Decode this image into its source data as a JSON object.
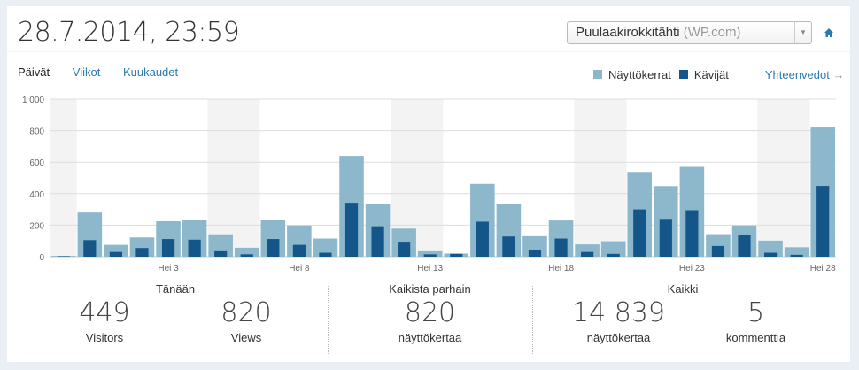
{
  "header": {
    "datetime": "28.7.2014, 23:59",
    "site_name": "Puulaakirokkitähti",
    "site_suffix": "(WP.com)"
  },
  "tabs": [
    {
      "label": "Päivät",
      "active": true
    },
    {
      "label": "Viikot"
    },
    {
      "label": "Kuukaudet"
    }
  ],
  "legend": {
    "views": "Näyttökerrat",
    "visitors": "Kävijät",
    "summaries_link": "Yhteenvedot",
    "arrow": "→"
  },
  "colors": {
    "views": "#8db8cc",
    "visitors": "#14558a",
    "link": "#2a7ab0",
    "weekend": "#f3f3f3"
  },
  "chart_data": {
    "type": "bar",
    "series": [
      {
        "name": "Näyttökerrat",
        "values": [
          5,
          280,
          75,
          122,
          225,
          232,
          142,
          57,
          232,
          198,
          115,
          640,
          335,
          178,
          40,
          20,
          462,
          335,
          130,
          230,
          78,
          98,
          538,
          448,
          570,
          143,
          198,
          102,
          60,
          820
        ]
      },
      {
        "name": "Kävijät",
        "values": [
          3,
          105,
          30,
          55,
          112,
          108,
          40,
          15,
          112,
          75,
          25,
          342,
          193,
          95,
          15,
          18,
          222,
          128,
          45,
          115,
          30,
          18,
          300,
          240,
          295,
          68,
          135,
          25,
          12,
          449
        ]
      }
    ],
    "weekend_indices": [
      0,
      6,
      7,
      13,
      14,
      20,
      21,
      27,
      28
    ],
    "ylim": [
      0,
      1000
    ],
    "yticks": [
      "0",
      "200",
      "400",
      "600",
      "800",
      "1 000"
    ],
    "xticks": [
      {
        "index": 4,
        "label": "Hei 3"
      },
      {
        "index": 9,
        "label": "Hei 8"
      },
      {
        "index": 14,
        "label": "Hei 13"
      },
      {
        "index": 19,
        "label": "Hei 18"
      },
      {
        "index": 24,
        "label": "Hei 23"
      },
      {
        "index": 29,
        "label": "Hei 28"
      }
    ]
  },
  "stats": {
    "today": {
      "title": "Tänään",
      "visitors": "449",
      "visitors_label": "Visitors",
      "views": "820",
      "views_label": "Views"
    },
    "best": {
      "title": "Kaikista parhain",
      "views": "820",
      "views_label": "näyttökertaa"
    },
    "all": {
      "title": "Kaikki",
      "views": "14 839",
      "views_label": "näyttökertaa",
      "comments": "5",
      "comments_label": "kommenttia"
    }
  }
}
